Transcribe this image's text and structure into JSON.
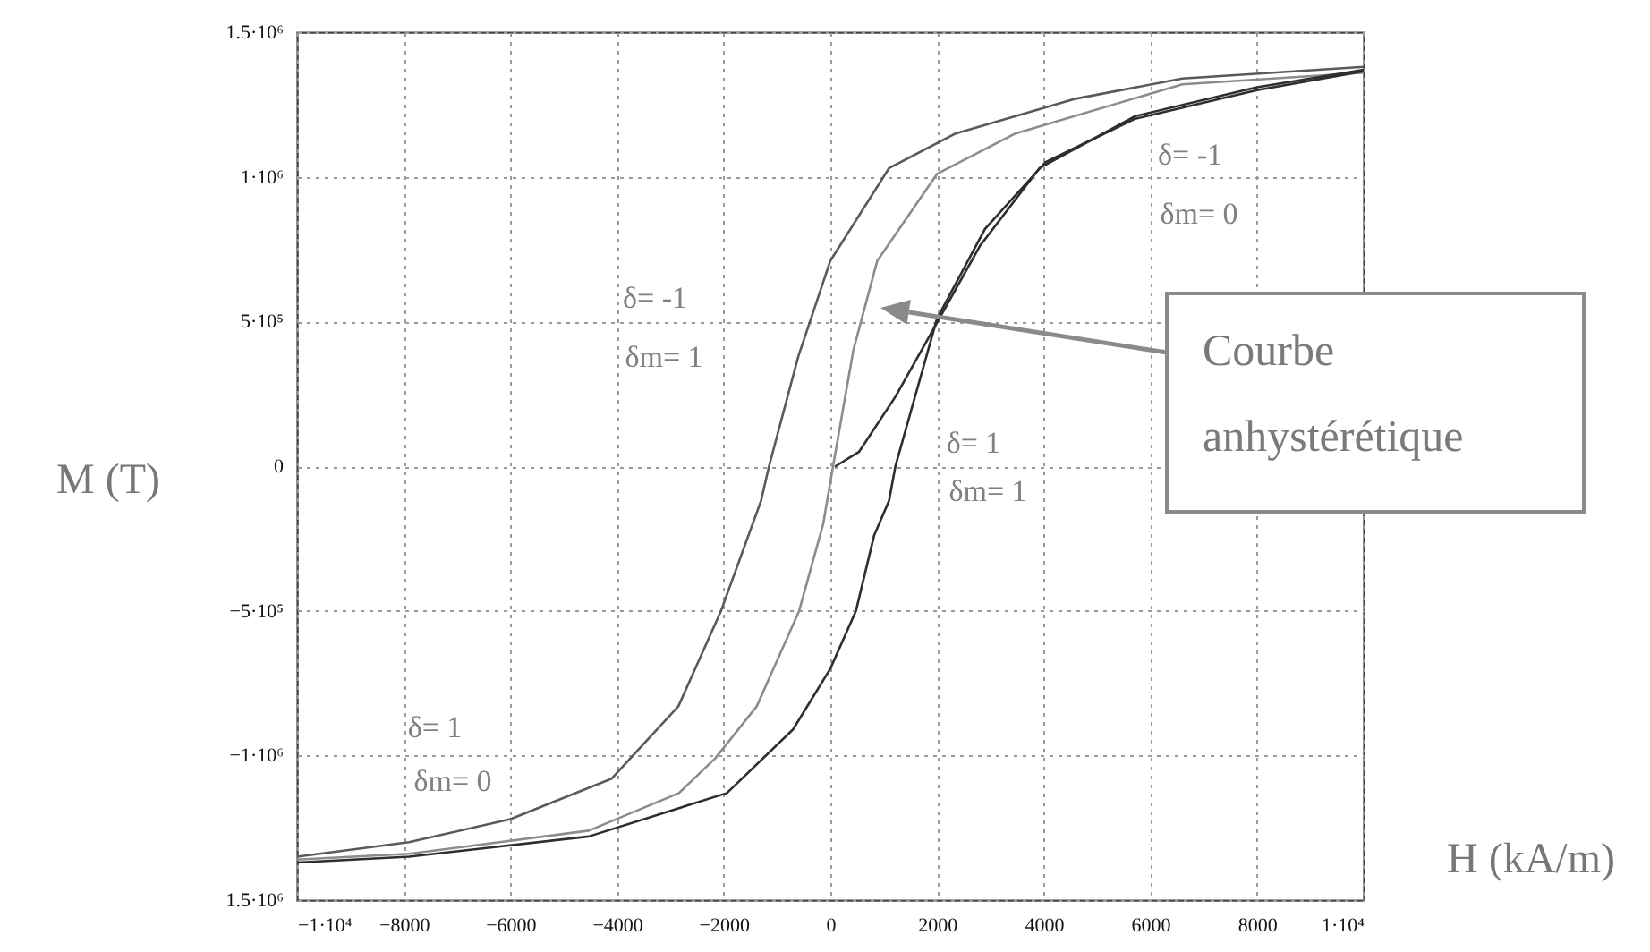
{
  "chart_data": {
    "type": "line",
    "xlabel": "H (kA/m)",
    "ylabel": "M (T)",
    "xlim": [
      -10000,
      10000
    ],
    "xticks": [
      {
        "value": -10000,
        "label": "−1·10⁴"
      },
      {
        "value": -8000,
        "label": "−8000"
      },
      {
        "value": -6000,
        "label": "−6000"
      },
      {
        "value": -4000,
        "label": "−4000"
      },
      {
        "value": -2000,
        "label": "−2000"
      },
      0,
      2000,
      4000,
      6000,
      8000,
      {
        "value": 10000,
        "label": "1·10⁴"
      }
    ],
    "ylim": [
      -1500000,
      1500000
    ],
    "yticks": [
      {
        "value": -1500000,
        "label": "1.5·10⁶"
      },
      {
        "value": -1000000,
        "label": "−1·10⁶"
      },
      {
        "value": -500000,
        "label": "−5·10⁵"
      },
      0,
      {
        "value": 500000,
        "label": "5·10⁵"
      },
      {
        "value": 1000000,
        "label": "1·10⁶"
      },
      {
        "value": 1500000,
        "label": "1.5·10⁶"
      }
    ],
    "grid": true,
    "series": [
      {
        "color": "#5a5a5a",
        "x": [
          -10000,
          -7900,
          -6000,
          -4100,
          -2850,
          -2050,
          -1300,
          -1150,
          -600,
          0,
          1100,
          2350,
          4600,
          6600,
          10000
        ],
        "values": [
          -1350000,
          -1300000,
          -1220000,
          -1080000,
          -830000,
          -500000,
          -120000,
          0,
          380000,
          710000,
          1030000,
          1150000,
          1270000,
          1340000,
          1380000
        ]
      },
      {
        "color": "#8c8c8c",
        "x": [
          -10000,
          -7900,
          -4530,
          -2840,
          -2160,
          -1380,
          -585,
          -135,
          50,
          430,
          880,
          2000,
          3470,
          6600,
          10000
        ],
        "values": [
          -1360000,
          -1340000,
          -1260000,
          -1130000,
          -1010000,
          -830000,
          -500000,
          -200000,
          0,
          400000,
          710000,
          1010000,
          1150000,
          1320000,
          1360000
        ]
      },
      {
        "color": "#2e2e2e",
        "x": [
          100,
          540,
          1220,
          1890,
          2800,
          3920,
          5720,
          8000,
          10000
        ],
        "values": [
          0,
          50000,
          240000,
          460000,
          760000,
          1030000,
          1210000,
          1310000,
          1370000
        ]
      },
      {
        "color": "#2e2e2e",
        "x": [
          -10000,
          -7900,
          -4530,
          -1940,
          -700,
          0,
          480,
          820,
          1100,
          1220,
          2000,
          2900,
          4030,
          5700,
          8000,
          10000
        ],
        "values": [
          -1370000,
          -1350000,
          -1280000,
          -1130000,
          -910000,
          -700000,
          -500000,
          -240000,
          -120000,
          0,
          510000,
          820000,
          1050000,
          1200000,
          1300000,
          1365000
        ]
      }
    ],
    "annotations": [
      "δ= -1",
      "δm= 1",
      "δ= -1",
      "δm= 0",
      "δ= 1",
      "δm= 1",
      "δ= 1",
      "δm= 0",
      "Courbe anhystérétique"
    ]
  }
}
